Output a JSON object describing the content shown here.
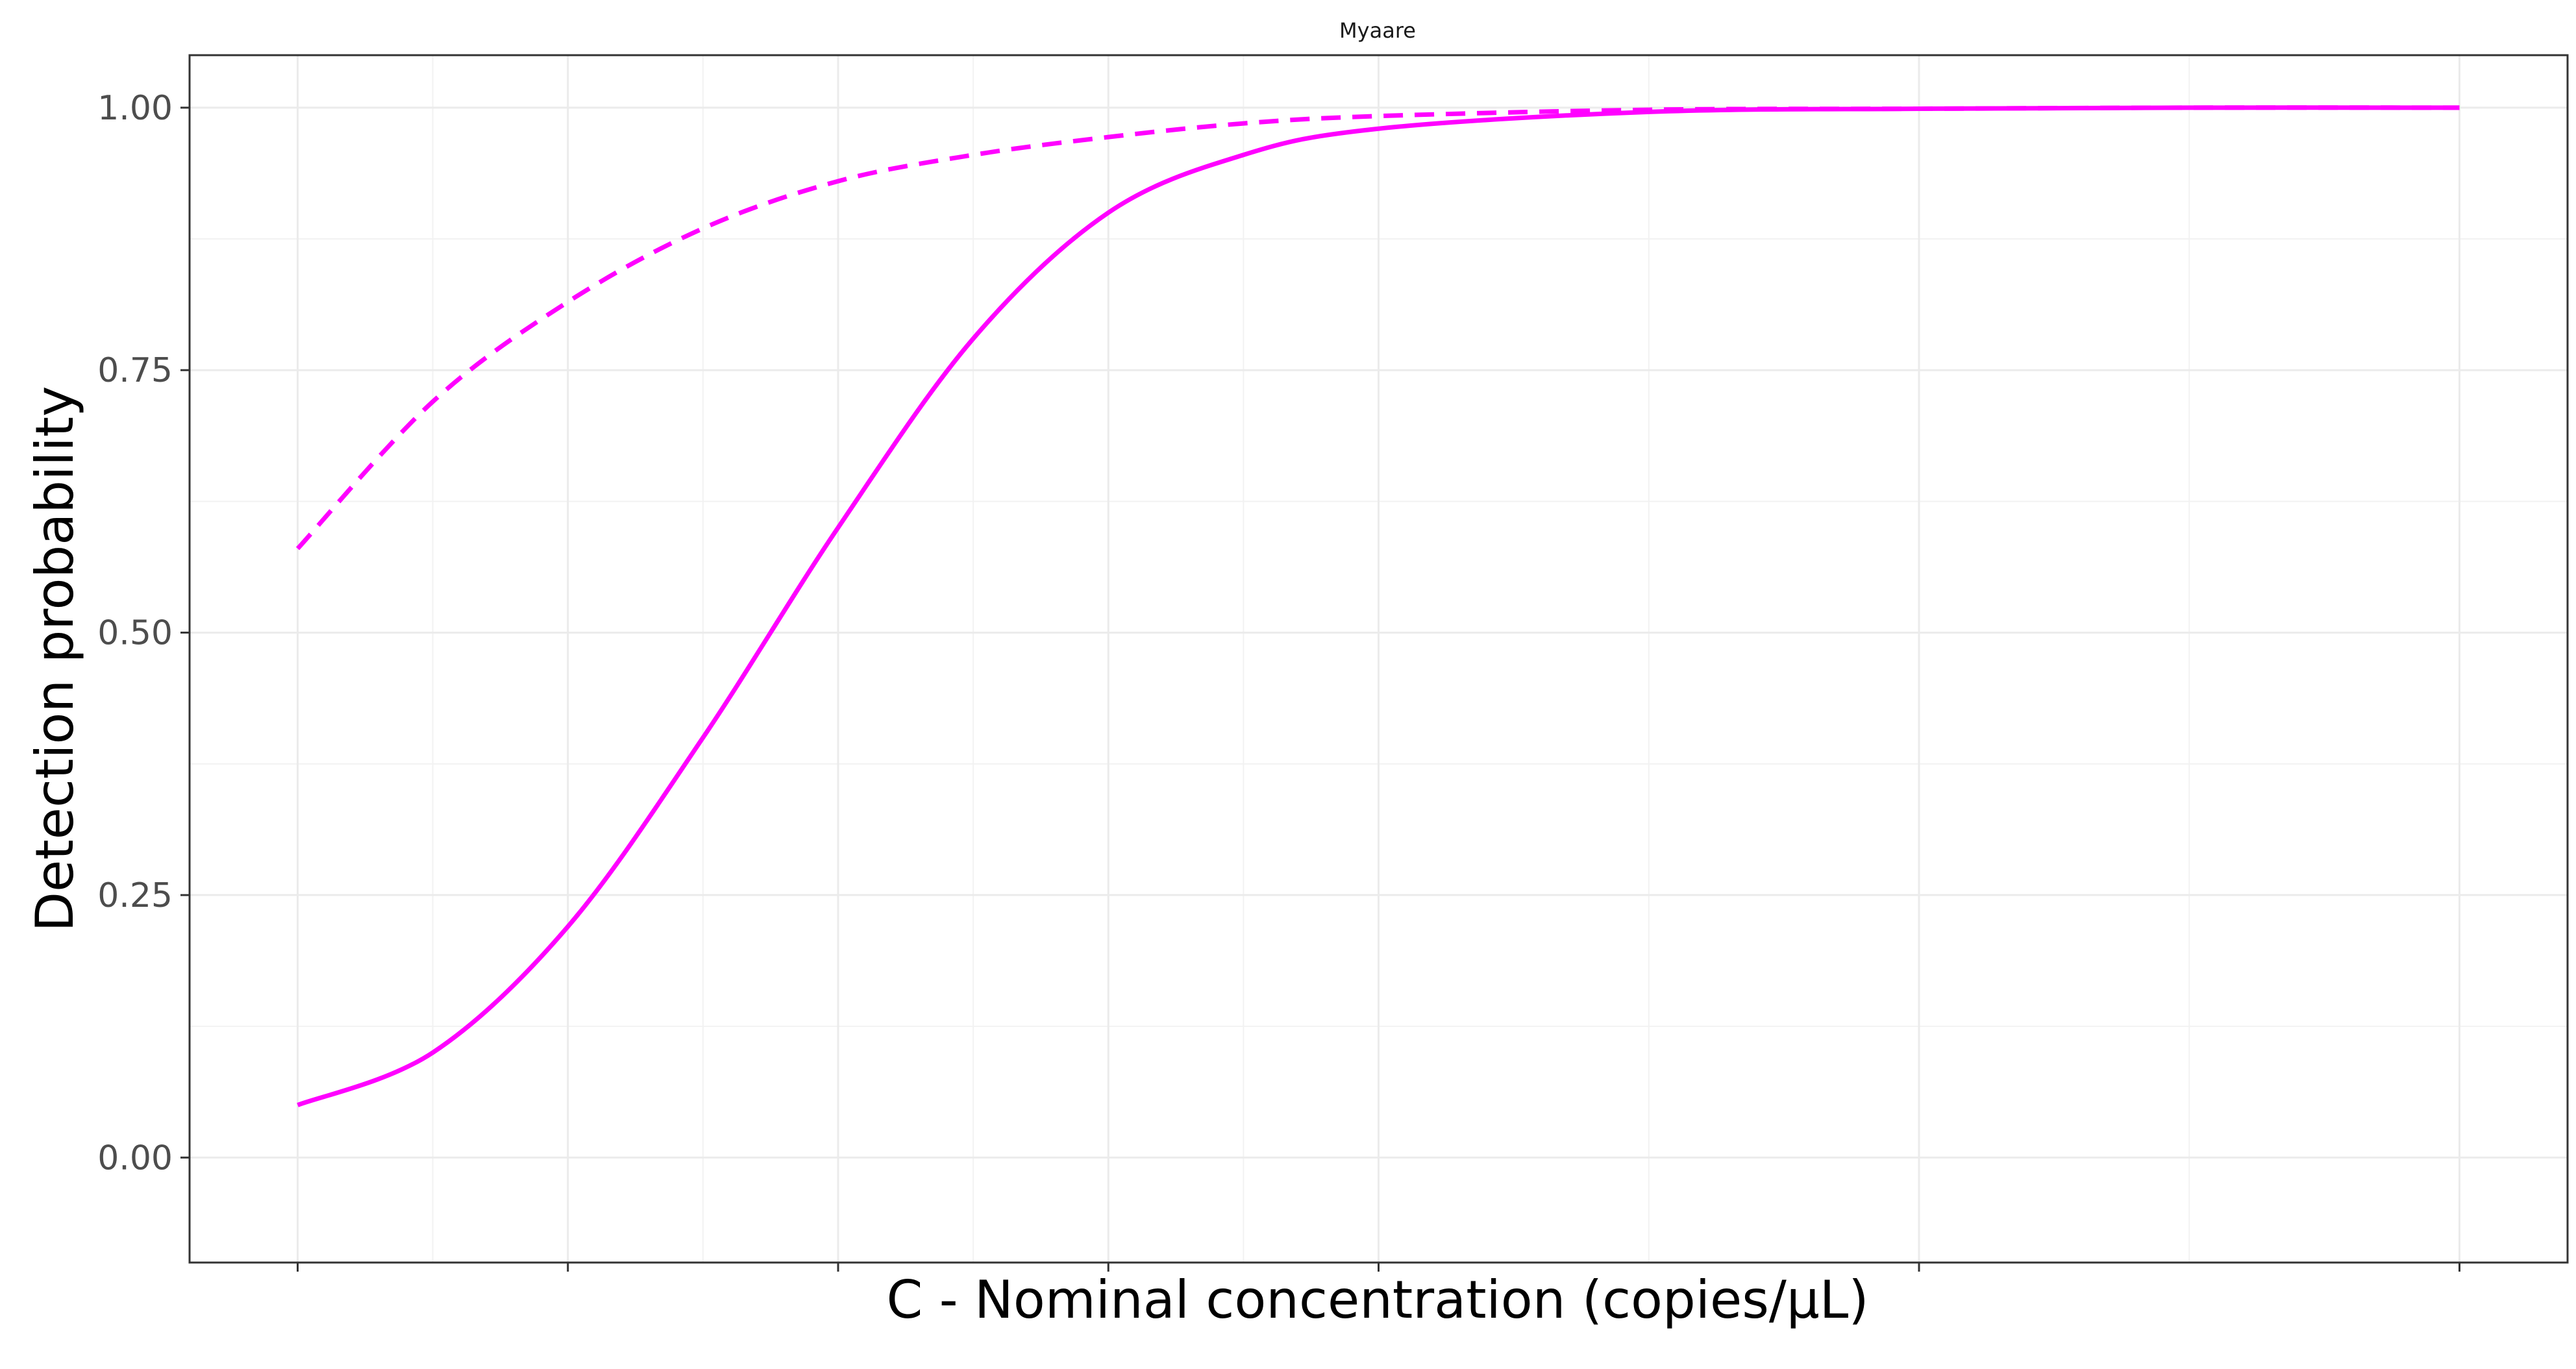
{
  "chart_data": {
    "type": "line",
    "title": "Myaare",
    "xlabel": "C - Nominal concentration (copies/µL)",
    "ylabel": "Detection probability",
    "xlim": [
      -0.2,
      4.2
    ],
    "ylim": [
      -0.1,
      1.05
    ],
    "x_ticks": [
      0,
      0.5,
      1,
      1.5,
      2,
      3,
      4
    ],
    "x_tick_labels": [
      "",
      "",
      "",
      "",
      "",
      "",
      ""
    ],
    "y_ticks": [
      0,
      0.25,
      0.5,
      0.75,
      1
    ],
    "y_tick_labels": [
      "0.00",
      "0.25",
      "0.50",
      "0.75",
      "1.00"
    ],
    "grid": true,
    "legend": "none",
    "color": "#ff00ff",
    "series": [
      {
        "style": "solid",
        "x": [
          0,
          0.25,
          0.5,
          0.75,
          1,
          1.25,
          1.5,
          1.75,
          2,
          2.5,
          3,
          3.5,
          4
        ],
        "y": [
          0.05,
          0.1,
          0.22,
          0.4,
          0.6,
          0.78,
          0.9,
          0.955,
          0.98,
          0.996,
          0.999,
          1.0,
          1.0
        ]
      },
      {
        "style": "dashed",
        "x": [
          0,
          0.25,
          0.5,
          0.75,
          1,
          1.25,
          1.5,
          1.75,
          2,
          2.5,
          3,
          3.5,
          4
        ],
        "y": [
          0.58,
          0.72,
          0.815,
          0.885,
          0.93,
          0.955,
          0.972,
          0.985,
          0.992,
          0.998,
          0.999,
          1.0,
          1.0
        ]
      }
    ]
  }
}
